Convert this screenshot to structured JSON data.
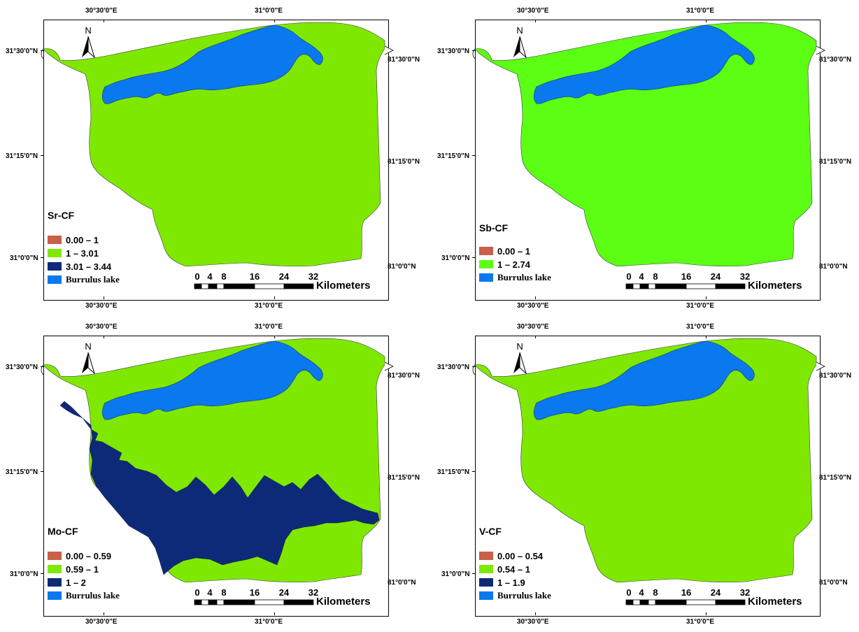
{
  "colors": {
    "low": "#c8604a",
    "mid": "#7fe800",
    "mid_sb": "#5cff14",
    "high": "#0d2a78",
    "lake": "#0a78ee"
  },
  "coords": {
    "lon_left": "30°30'0\"E",
    "lon_right": "31°0'0\"E",
    "lat_top_left": "31°30'0\"N",
    "lat_mid_left": "31°15'0\"N",
    "lat_bot_left": "31°0'0\"N",
    "lat_top_right": "31°30'0\"N",
    "lat_mid_right": "31°15'0\"N",
    "lat_bot_right": "31°0'0\"N"
  },
  "north_label": "N",
  "scale": {
    "numbers": [
      "0",
      "4",
      "8",
      "16",
      "24",
      "32"
    ],
    "unit": "Kilometers"
  },
  "panels": [
    {
      "title": "Sr-CF",
      "land_color": "#7fe800",
      "has_high_zone": false,
      "legend": [
        {
          "label": "0.00 – 1",
          "color": "#c8604a",
          "lake": false
        },
        {
          "label": "1 – 3.01",
          "color": "#7fe800",
          "lake": false
        },
        {
          "label": "3.01 – 3.44",
          "color": "#0d2a78",
          "lake": false
        },
        {
          "label": "Burrulus lake",
          "color": "#0a78ee",
          "lake": true
        }
      ]
    },
    {
      "title": "Sb-CF",
      "land_color": "#5cff14",
      "has_high_zone": false,
      "legend": [
        {
          "label": "0.00 – 1",
          "color": "#c8604a",
          "lake": false
        },
        {
          "label": "1 – 2.74",
          "color": "#5cff14",
          "lake": false
        },
        {
          "label": "Burrulus lake",
          "color": "#0a78ee",
          "lake": true
        }
      ]
    },
    {
      "title": "Mo-CF",
      "land_color": "#7fe800",
      "has_high_zone": true,
      "legend": [
        {
          "label": "0.00 – 0.59",
          "color": "#c8604a",
          "lake": false
        },
        {
          "label": "0.59 – 1",
          "color": "#7fe800",
          "lake": false
        },
        {
          "label": "1 – 2",
          "color": "#0d2a78",
          "lake": false
        },
        {
          "label": "Burrulus lake",
          "color": "#0a78ee",
          "lake": true
        }
      ]
    },
    {
      "title": "V-CF",
      "land_color": "#7fe800",
      "has_high_zone": false,
      "legend": [
        {
          "label": "0.00 – 0.54",
          "color": "#c8604a",
          "lake": false
        },
        {
          "label": "0.54 – 1",
          "color": "#7fe800",
          "lake": false
        },
        {
          "label": "1 – 1.9",
          "color": "#0d2a78",
          "lake": false
        },
        {
          "label": "Burrulus lake",
          "color": "#0a78ee",
          "lake": true
        }
      ]
    }
  ]
}
